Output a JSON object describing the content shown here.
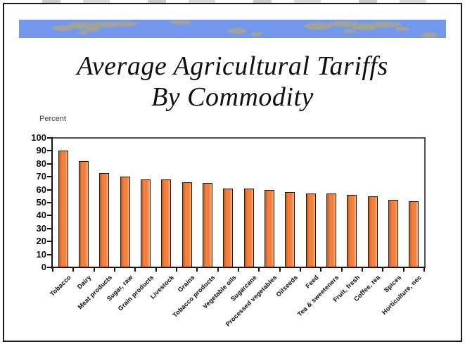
{
  "title": {
    "line1": "Average Agricultural Tariffs",
    "line2": "By Commodity"
  },
  "colors": {
    "banner_blue": "#7297ED",
    "banner_land": "#A8A690",
    "bar_orange": "#F08040",
    "bar_outline": "#2A180D",
    "slide_border": "#1B1B1B"
  },
  "chart_data": {
    "type": "bar",
    "title": "Average Agricultural Tariffs By Commodity",
    "xlabel": "",
    "ylabel": "Percent",
    "ylim": [
      0,
      100
    ],
    "yticks": [
      0,
      10,
      20,
      30,
      40,
      50,
      60,
      70,
      80,
      90,
      100
    ],
    "grid": false,
    "legend": false,
    "bar_color": "#F08040",
    "categories": [
      "Tobacco",
      "Dairy",
      "Meat products",
      "Sugar, raw",
      "Grain products",
      "Livestock",
      "Grains",
      "Tobacco products",
      "Vegetable oils",
      "Sugarcane",
      "Processed vegetables",
      "Oilseeds",
      "Feed",
      "Tea & sweeteners",
      "Fruit, fresh",
      "Coffee, tea",
      "Spices",
      "Horticulture, nec"
    ],
    "values": [
      90,
      82,
      73,
      70,
      68,
      68,
      66,
      65,
      61,
      61,
      60,
      58,
      57,
      57,
      56,
      55,
      52,
      51
    ]
  }
}
